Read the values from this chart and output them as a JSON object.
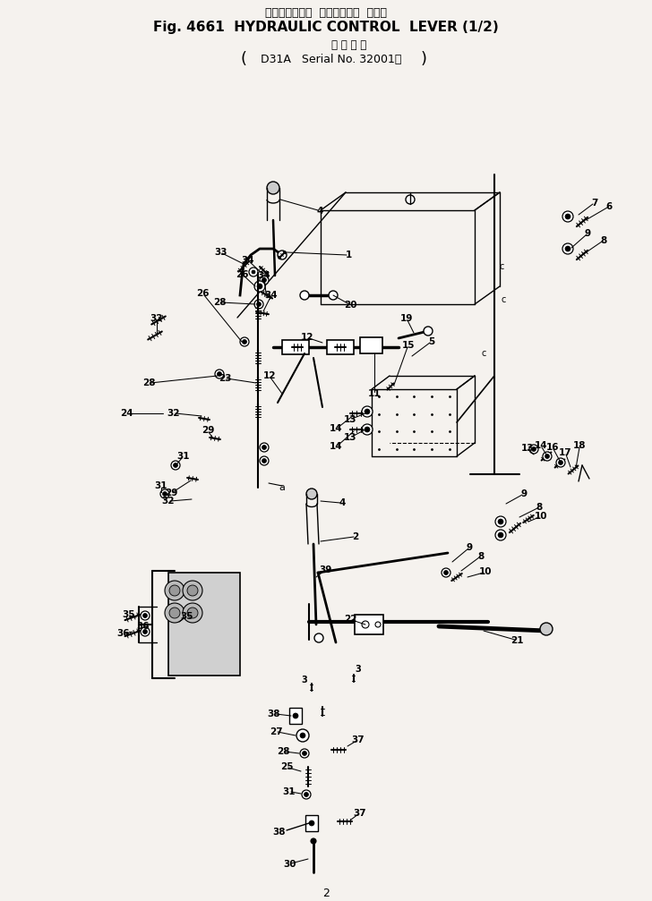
{
  "title_jp": "ハイドロリック  コントロール  レバー",
  "title_en": "Fig. 4661  HYDRAULIC CONTROL  LEVER (1/2)",
  "subtitle_jp": "適 用 号 機",
  "subtitle_model": "D31A   Serial No. 32001～",
  "bg_color": "#f5f2ee",
  "fig_width": 7.28,
  "fig_height": 10.07,
  "page_num": "2"
}
